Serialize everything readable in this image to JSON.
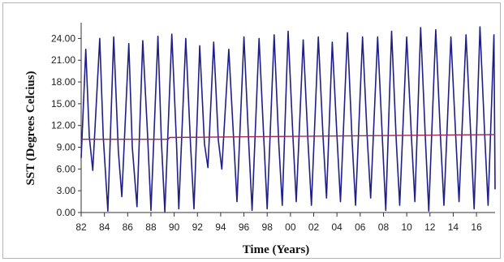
{
  "chart_data": {
    "type": "line",
    "title": "",
    "xlabel": "Time (Years)",
    "ylabel": "SST (Degrees Celcius)",
    "xlim": [
      1982,
      2017.6
    ],
    "ylim": [
      0,
      25.5
    ],
    "grid": false,
    "legend": "none",
    "x_tick_values": [
      1982,
      1984,
      1986,
      1988,
      1990,
      1992,
      1994,
      1996,
      1998,
      2000,
      2002,
      2004,
      2006,
      2008,
      2010,
      2012,
      2014,
      2016
    ],
    "x_tick_labels": [
      "82",
      "84",
      "86",
      "88",
      "90",
      "92",
      "94",
      "96",
      "98",
      "00",
      "02",
      "04",
      "06",
      "08",
      "10",
      "12",
      "14",
      "16"
    ],
    "y_tick_values": [
      0,
      3,
      6,
      9,
      12,
      15,
      18,
      21,
      24
    ],
    "y_tick_labels": [
      "0.00",
      "3.00",
      "6.00",
      "9.00",
      "12.00",
      "15.00",
      "18.00",
      "21.00",
      "24.00"
    ],
    "series": [
      {
        "color": "#1f1f8a",
        "points": [
          [
            1982.0,
            7.5
          ],
          [
            1982.4,
            22.5
          ],
          [
            1982.7,
            10.5
          ],
          [
            1983.0,
            5.8
          ],
          [
            1983.6,
            24.0
          ],
          [
            1983.9,
            10.5
          ],
          [
            1984.3,
            0.2
          ],
          [
            1984.8,
            24.2
          ],
          [
            1985.2,
            8.5
          ],
          [
            1985.5,
            2.2
          ],
          [
            1986.1,
            23.3
          ],
          [
            1986.4,
            9.0
          ],
          [
            1986.8,
            0.8
          ],
          [
            1987.3,
            23.7
          ],
          [
            1987.7,
            11.0
          ],
          [
            1988.0,
            0.3
          ],
          [
            1988.6,
            24.3
          ],
          [
            1988.9,
            10.0
          ],
          [
            1989.2,
            0.1
          ],
          [
            1989.8,
            24.6
          ],
          [
            1990.2,
            9.5
          ],
          [
            1990.4,
            0.5
          ],
          [
            1991.0,
            24.0
          ],
          [
            1991.4,
            9.5
          ],
          [
            1991.7,
            0.5
          ],
          [
            1992.2,
            23.0
          ],
          [
            1992.6,
            9.5
          ],
          [
            1992.9,
            6.2
          ],
          [
            1993.4,
            23.5
          ],
          [
            1993.8,
            10.0
          ],
          [
            1994.1,
            6.0
          ],
          [
            1994.7,
            22.5
          ],
          [
            1995.1,
            10.5
          ],
          [
            1995.4,
            1.5
          ],
          [
            1996.0,
            24.2
          ],
          [
            1996.4,
            10.0
          ],
          [
            1996.7,
            0.3
          ],
          [
            1997.3,
            24.0
          ],
          [
            1997.7,
            10.5
          ],
          [
            1998.0,
            0.5
          ],
          [
            1998.6,
            24.5
          ],
          [
            1999.0,
            9.5
          ],
          [
            1999.3,
            1.0
          ],
          [
            1999.8,
            25.0
          ],
          [
            2000.2,
            11.0
          ],
          [
            2000.5,
            1.5
          ],
          [
            2001.1,
            23.8
          ],
          [
            2001.5,
            10.0
          ],
          [
            2001.8,
            1.0
          ],
          [
            2002.4,
            24.2
          ],
          [
            2002.8,
            10.5
          ],
          [
            2003.1,
            2.0
          ],
          [
            2003.6,
            23.5
          ],
          [
            2004.0,
            10.5
          ],
          [
            2004.3,
            1.5
          ],
          [
            2004.9,
            24.8
          ],
          [
            2005.3,
            10.0
          ],
          [
            2005.6,
            1.0
          ],
          [
            2006.2,
            24.2
          ],
          [
            2006.6,
            10.5
          ],
          [
            2006.9,
            2.0
          ],
          [
            2007.5,
            24.2
          ],
          [
            2007.9,
            10.5
          ],
          [
            2008.2,
            0.3
          ],
          [
            2008.7,
            25.0
          ],
          [
            2009.1,
            10.0
          ],
          [
            2009.4,
            1.0
          ],
          [
            2010.0,
            24.2
          ],
          [
            2010.4,
            10.5
          ],
          [
            2010.7,
            1.5
          ],
          [
            2011.2,
            25.5
          ],
          [
            2011.6,
            10.5
          ],
          [
            2011.9,
            0.2
          ],
          [
            2012.5,
            25.2
          ],
          [
            2012.9,
            10.5
          ],
          [
            2013.2,
            1.0
          ],
          [
            2013.8,
            24.2
          ],
          [
            2014.2,
            11.0
          ],
          [
            2014.5,
            1.5
          ],
          [
            2015.1,
            24.5
          ],
          [
            2015.5,
            11.0
          ],
          [
            2015.8,
            0.5
          ],
          [
            2016.3,
            25.6
          ],
          [
            2016.7,
            11.0
          ],
          [
            2017.0,
            1.0
          ],
          [
            2017.5,
            24.5
          ],
          [
            2017.6,
            3.2
          ]
        ]
      },
      {
        "color": "#a3254d",
        "points": [
          [
            1982.0,
            10.1
          ],
          [
            1989.5,
            10.1
          ],
          [
            1989.6,
            10.35
          ],
          [
            2017.6,
            10.75
          ]
        ]
      }
    ]
  }
}
